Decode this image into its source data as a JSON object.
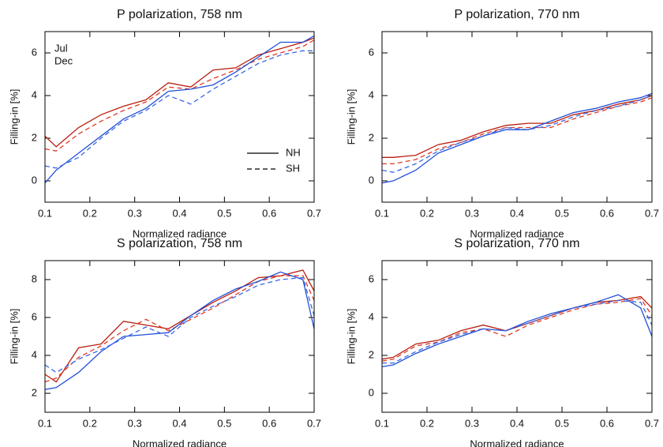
{
  "chart_data": [
    {
      "type": "line",
      "title": "P polarization, 758 nm",
      "xlabel": "Normalized radiance",
      "ylabel": "Filling-in [%]",
      "x": [
        0.1,
        0.125,
        0.175,
        0.225,
        0.275,
        0.325,
        0.375,
        0.425,
        0.475,
        0.525,
        0.575,
        0.625,
        0.675,
        0.7
      ],
      "xlim": [
        0.1,
        0.7
      ],
      "xticks": [
        0.1,
        0.2,
        0.3,
        0.4,
        0.5,
        0.6,
        0.7
      ],
      "ylim": [
        -1,
        7
      ],
      "yticks": [
        0,
        2,
        4,
        6
      ],
      "legend": {
        "colors": [
          {
            "name": "Jul",
            "color": "#d42a12"
          },
          {
            "name": "Dec",
            "color": "#2050d8"
          }
        ],
        "styles": [
          {
            "name": "NH",
            "dash": "solid"
          },
          {
            "name": "SH",
            "dash": "dashed"
          }
        ]
      },
      "series": [
        {
          "color": "#b81e0e",
          "dash": "solid",
          "values": [
            2.1,
            1.6,
            2.5,
            3.1,
            3.5,
            3.8,
            4.6,
            4.4,
            5.2,
            5.3,
            5.9,
            6.2,
            6.5,
            6.7
          ]
        },
        {
          "color": "#e03a22",
          "dash": "dashed",
          "values": [
            1.5,
            1.4,
            2.2,
            2.8,
            3.3,
            3.7,
            4.4,
            4.3,
            4.8,
            5.2,
            5.7,
            6.0,
            6.3,
            6.6
          ]
        },
        {
          "color": "#2050d8",
          "dash": "solid",
          "values": [
            -0.1,
            0.5,
            1.3,
            2.1,
            2.9,
            3.4,
            4.2,
            4.3,
            4.5,
            5.1,
            5.8,
            6.5,
            6.5,
            6.8
          ]
        },
        {
          "color": "#3a66e6",
          "dash": "dashed",
          "values": [
            0.7,
            0.6,
            1.1,
            2.0,
            2.8,
            3.3,
            4.0,
            3.6,
            4.3,
            4.9,
            5.5,
            5.9,
            6.1,
            6.1
          ]
        }
      ]
    },
    {
      "type": "line",
      "title": "P polarization, 770 nm",
      "xlabel": "Normalized radiance",
      "ylabel": "Filling-in [%]",
      "x": [
        0.1,
        0.125,
        0.175,
        0.225,
        0.275,
        0.325,
        0.375,
        0.425,
        0.475,
        0.525,
        0.575,
        0.625,
        0.675,
        0.7
      ],
      "xlim": [
        0.1,
        0.7
      ],
      "xticks": [
        0.1,
        0.2,
        0.3,
        0.4,
        0.5,
        0.6,
        0.7
      ],
      "ylim": [
        -1,
        7
      ],
      "yticks": [
        0,
        2,
        4,
        6
      ],
      "series": [
        {
          "color": "#b81e0e",
          "dash": "solid",
          "values": [
            1.1,
            1.1,
            1.2,
            1.7,
            1.9,
            2.3,
            2.6,
            2.7,
            2.7,
            3.1,
            3.3,
            3.6,
            3.8,
            4.0
          ]
        },
        {
          "color": "#e03a22",
          "dash": "dashed",
          "values": [
            0.8,
            0.8,
            1.0,
            1.5,
            1.8,
            2.2,
            2.5,
            2.5,
            2.5,
            2.9,
            3.2,
            3.5,
            3.7,
            3.9
          ]
        },
        {
          "color": "#2050d8",
          "dash": "solid",
          "values": [
            -0.1,
            0.0,
            0.5,
            1.3,
            1.7,
            2.1,
            2.4,
            2.4,
            2.8,
            3.2,
            3.4,
            3.7,
            3.9,
            4.1
          ]
        },
        {
          "color": "#3a66e6",
          "dash": "dashed",
          "values": [
            0.5,
            0.4,
            0.8,
            1.4,
            1.8,
            2.1,
            2.5,
            2.4,
            2.6,
            3.0,
            3.3,
            3.5,
            3.8,
            4.0
          ]
        }
      ]
    },
    {
      "type": "line",
      "title": "S polarization, 758 nm",
      "xlabel": "Normalized radiance",
      "ylabel": "Filling-in [%]",
      "x": [
        0.1,
        0.125,
        0.175,
        0.225,
        0.275,
        0.325,
        0.375,
        0.425,
        0.475,
        0.525,
        0.575,
        0.625,
        0.675,
        0.7
      ],
      "xlim": [
        0.1,
        0.7
      ],
      "xticks": [
        0.1,
        0.2,
        0.3,
        0.4,
        0.5,
        0.6,
        0.7
      ],
      "ylim": [
        1,
        9
      ],
      "yticks": [
        2,
        4,
        6,
        8
      ],
      "series": [
        {
          "color": "#b81e0e",
          "dash": "solid",
          "values": [
            3.0,
            2.6,
            4.4,
            4.6,
            5.8,
            5.6,
            5.4,
            6.1,
            6.8,
            7.4,
            8.1,
            8.2,
            8.5,
            7.4
          ]
        },
        {
          "color": "#e03a22",
          "dash": "dashed",
          "values": [
            2.6,
            2.8,
            3.9,
            4.5,
            5.3,
            5.9,
            5.3,
            5.9,
            6.5,
            7.2,
            7.9,
            8.2,
            8.2,
            6.9
          ]
        },
        {
          "color": "#2050d8",
          "dash": "solid",
          "values": [
            2.2,
            2.3,
            3.1,
            4.2,
            5.0,
            5.1,
            5.2,
            6.1,
            6.9,
            7.5,
            7.9,
            8.4,
            8.0,
            5.4
          ]
        },
        {
          "color": "#3a66e6",
          "dash": "dashed",
          "values": [
            3.5,
            3.1,
            3.8,
            4.3,
            4.9,
            5.5,
            5.0,
            6.0,
            6.6,
            7.1,
            7.7,
            8.0,
            8.1,
            6.1
          ]
        }
      ]
    },
    {
      "type": "line",
      "title": "S polarization, 770 nm",
      "xlabel": "Normalized radiance",
      "ylabel": "Filling-in [%]",
      "x": [
        0.1,
        0.125,
        0.175,
        0.225,
        0.275,
        0.325,
        0.375,
        0.425,
        0.475,
        0.525,
        0.575,
        0.625,
        0.675,
        0.7
      ],
      "xlim": [
        0.1,
        0.7
      ],
      "xticks": [
        0.1,
        0.2,
        0.3,
        0.4,
        0.5,
        0.6,
        0.7
      ],
      "ylim": [
        -1,
        7
      ],
      "yticks": [
        0,
        2,
        4,
        6
      ],
      "series": [
        {
          "color": "#b81e0e",
          "dash": "solid",
          "values": [
            1.8,
            1.9,
            2.6,
            2.8,
            3.3,
            3.6,
            3.3,
            3.7,
            4.1,
            4.5,
            4.8,
            4.9,
            5.1,
            4.5
          ]
        },
        {
          "color": "#e03a22",
          "dash": "dashed",
          "values": [
            1.7,
            1.8,
            2.5,
            2.7,
            3.2,
            3.4,
            3.0,
            3.6,
            4.0,
            4.4,
            4.7,
            4.8,
            5.0,
            4.1
          ]
        },
        {
          "color": "#2050d8",
          "dash": "solid",
          "values": [
            1.4,
            1.5,
            2.1,
            2.6,
            3.0,
            3.4,
            3.3,
            3.8,
            4.2,
            4.5,
            4.8,
            5.2,
            4.5,
            3.0
          ]
        },
        {
          "color": "#3a66e6",
          "dash": "dashed",
          "values": [
            1.6,
            1.6,
            2.2,
            2.7,
            3.1,
            3.4,
            3.3,
            3.7,
            4.1,
            4.5,
            4.7,
            4.9,
            4.8,
            3.6
          ]
        }
      ]
    }
  ]
}
